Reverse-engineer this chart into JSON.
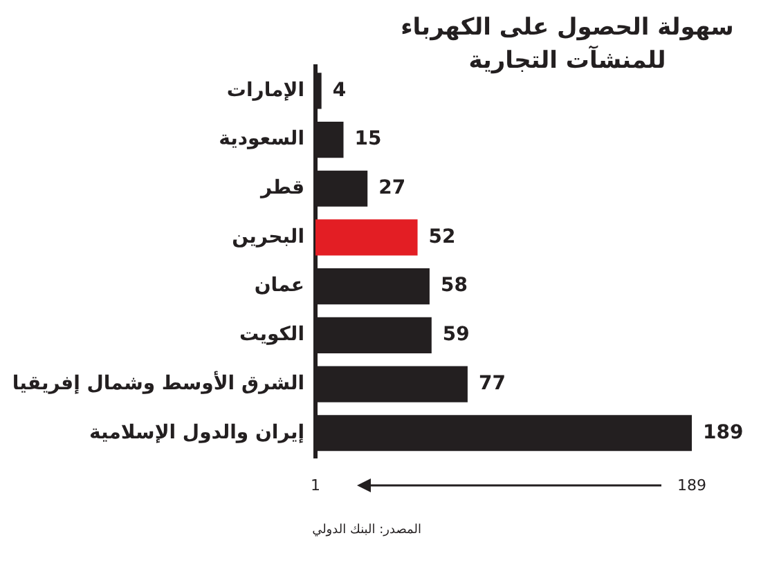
{
  "chart_data": {
    "type": "bar",
    "orientation": "horizontal",
    "title": "سهولة الحصول على الكهرباء\nللمنشآت التجارية",
    "categories": [
      "الإمارات",
      "السعودية",
      "قطر",
      "البحرين",
      "عمان",
      "الكويت",
      "الشرق الأوسط وشمال إفريقيا",
      "إيران والدول الإسلامية"
    ],
    "values": [
      4,
      15,
      27,
      52,
      58,
      59,
      77,
      189
    ],
    "colors": [
      "#231f20",
      "#231f20",
      "#231f20",
      "#e31e24",
      "#231f20",
      "#231f20",
      "#231f20",
      "#231f20"
    ],
    "xlim": [
      1,
      189
    ],
    "xticks": [
      1,
      189
    ],
    "grid": false,
    "legend": false,
    "data_labels": true,
    "annotations": [
      "المصدر: البنك الدولي"
    ]
  }
}
